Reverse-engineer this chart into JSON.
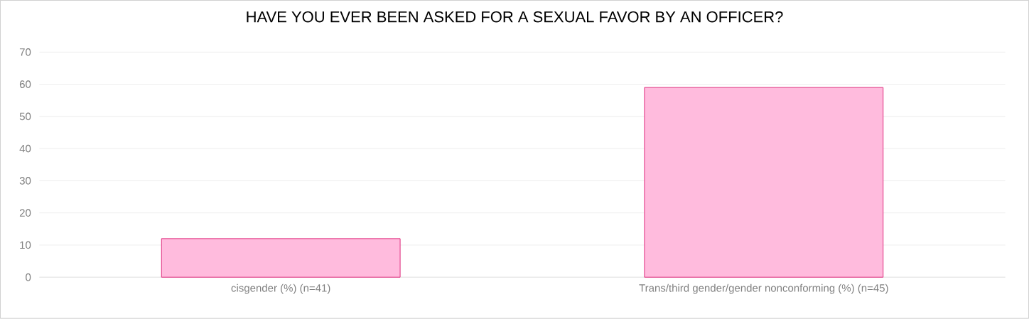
{
  "chart_data": {
    "type": "bar",
    "title": "HAVE YOU EVER BEEN ASKED FOR A SEXUAL FAVOR BY AN OFFICER?",
    "categories": [
      "cisgender (%)  (n=41)",
      "Trans/third gender/gender nonconforming (%) (n=45)"
    ],
    "values": [
      12,
      59
    ],
    "color": "#ffbbdd",
    "ylim": [
      0,
      70
    ],
    "yticks": [
      0,
      10,
      20,
      30,
      40,
      50,
      60,
      70
    ],
    "grid": "y"
  }
}
